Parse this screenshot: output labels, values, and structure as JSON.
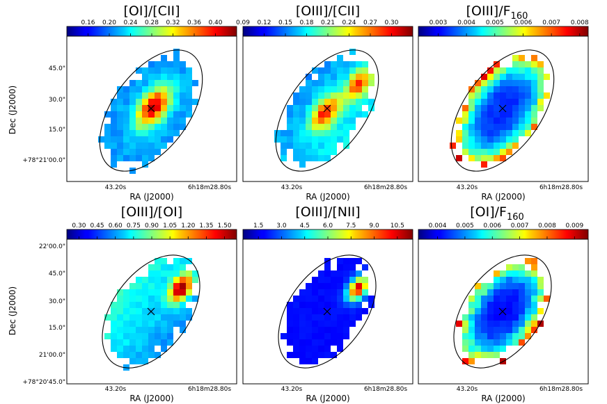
{
  "chart_data": [
    {
      "type": "heatmap",
      "title": "[OI]/[CII]",
      "colorbar_ticks": [
        "0.16",
        "0.20",
        "0.24",
        "0.28",
        "0.32",
        "0.36",
        "0.40"
      ],
      "colorbar_range": [
        0.12,
        0.44
      ],
      "ylabel": "Dec (J2000)",
      "ytick_labels": [
        "45.0\"",
        "30.0\"",
        "15.0\"",
        "+78°21'00.0\""
      ],
      "xlabel": "RA (J2000)",
      "xtick_labels": [
        "43.20s",
        "6h18m28.80s"
      ],
      "pattern": {
        "type": "center_peak",
        "low": 0.14,
        "high": 0.42
      }
    },
    {
      "type": "heatmap",
      "title": "[OIII]/[CII]",
      "colorbar_ticks": [
        "0.09",
        "0.12",
        "0.15",
        "0.18",
        "0.21",
        "0.24",
        "0.27",
        "0.30"
      ],
      "colorbar_range": [
        0.09,
        0.33
      ],
      "xlabel": "RA (J2000)",
      "xtick_labels": [
        "43.20s",
        "6h18m28.80s"
      ],
      "pattern": {
        "type": "two_peaks",
        "low": 0.1,
        "high": 0.31
      }
    },
    {
      "type": "heatmap",
      "title": "[OIII]/F",
      "title_sub": "160",
      "colorbar_ticks": [
        "0.003",
        "0.004",
        "0.005",
        "0.006",
        "0.007",
        "0.008"
      ],
      "colorbar_range": [
        0.0023,
        0.0083
      ],
      "xlabel": "RA (J2000)",
      "xtick_labels": [
        "43.20s",
        "6h18m28.80s"
      ],
      "pattern": {
        "type": "edges_high",
        "low": 0.0028,
        "high": 0.0079
      }
    },
    {
      "type": "heatmap",
      "title": "[OIII]/[OI]",
      "colorbar_ticks": [
        "0.30",
        "0.45",
        "0.60",
        "0.75",
        "0.90",
        "1.05",
        "1.20",
        "1.35",
        "1.50"
      ],
      "colorbar_range": [
        0.2,
        1.6
      ],
      "ylabel": "Dec (J2000)",
      "ytick_labels": [
        "22'00.0\"",
        "45.0\"",
        "30.0\"",
        "15.0\"",
        "21'00.0\"",
        "+78°20'45.0\""
      ],
      "xlabel": "RA (J2000)",
      "xtick_labels": [
        "43.20s",
        "6h18m28.80s"
      ],
      "pattern": {
        "type": "ne_peak",
        "low": 0.3,
        "high": 1.55
      }
    },
    {
      "type": "heatmap",
      "title": "[OIII]/[NII]",
      "colorbar_ticks": [
        "1.5",
        "3.0",
        "4.5",
        "6.0",
        "7.5",
        "9.0",
        "10.5"
      ],
      "colorbar_range": [
        0.5,
        11.5
      ],
      "xlabel": "RA (J2000)",
      "xtick_labels": [
        "43.20s",
        "6h18m28.80s"
      ],
      "pattern": {
        "type": "ne_peak_low",
        "low": 1.2,
        "high": 10.8
      }
    },
    {
      "type": "heatmap",
      "title": "[OI]/F",
      "title_sub": "160",
      "colorbar_ticks": [
        "0.004",
        "0.005",
        "0.006",
        "0.007",
        "0.008",
        "0.009"
      ],
      "colorbar_range": [
        0.0033,
        0.0095
      ],
      "xlabel": "RA (J2000)",
      "xtick_labels": [
        "43.20s",
        "6h18m28.80s"
      ],
      "pattern": {
        "type": "edges_high",
        "low": 0.0036,
        "high": 0.0092
      }
    }
  ]
}
